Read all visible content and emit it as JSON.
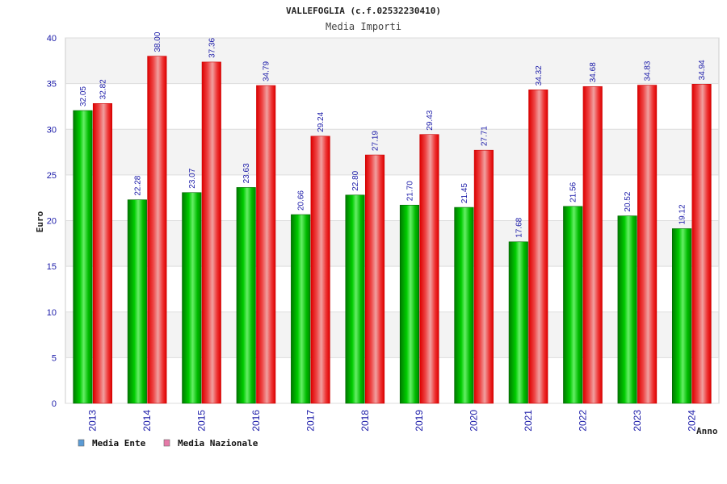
{
  "chart_data": {
    "type": "bar",
    "title": "VALLEFOGLIA (c.f.02532230410)",
    "subtitle": "Media Importi",
    "xlabel": "Anno",
    "ylabel": "Euro",
    "ylim": [
      0,
      40
    ],
    "yticks": [
      "0",
      "5",
      "10",
      "15",
      "20",
      "25",
      "30",
      "35",
      "40"
    ],
    "categories": [
      "2013",
      "2014",
      "2015",
      "2016",
      "2017",
      "2018",
      "2019",
      "2020",
      "2021",
      "2022",
      "2023",
      "2024"
    ],
    "series": [
      {
        "name": "Media Ente",
        "legend_color": "#5b9bd5",
        "color": "#00aa00",
        "values": [
          32.05,
          22.28,
          23.07,
          23.63,
          20.66,
          22.8,
          21.7,
          21.45,
          17.68,
          21.56,
          20.52,
          19.12
        ],
        "labels": [
          "32.05",
          "22.28",
          "23.07",
          "23.63",
          "20.66",
          "22.80",
          "21.70",
          "21.45",
          "17.68",
          "21.56",
          "20.52",
          "19.12"
        ]
      },
      {
        "name": "Media Nazionale",
        "legend_color": "#e67aa8",
        "color": "#ee1111",
        "values": [
          32.82,
          38.0,
          37.36,
          34.79,
          29.24,
          27.19,
          29.43,
          27.71,
          34.32,
          34.68,
          34.83,
          34.94
        ],
        "labels": [
          "32.82",
          "38.00",
          "37.36",
          "34.79",
          "29.24",
          "27.19",
          "29.43",
          "27.71",
          "34.32",
          "34.68",
          "34.83",
          "34.94"
        ]
      }
    ],
    "grid": true,
    "legend": "bottom-left"
  }
}
